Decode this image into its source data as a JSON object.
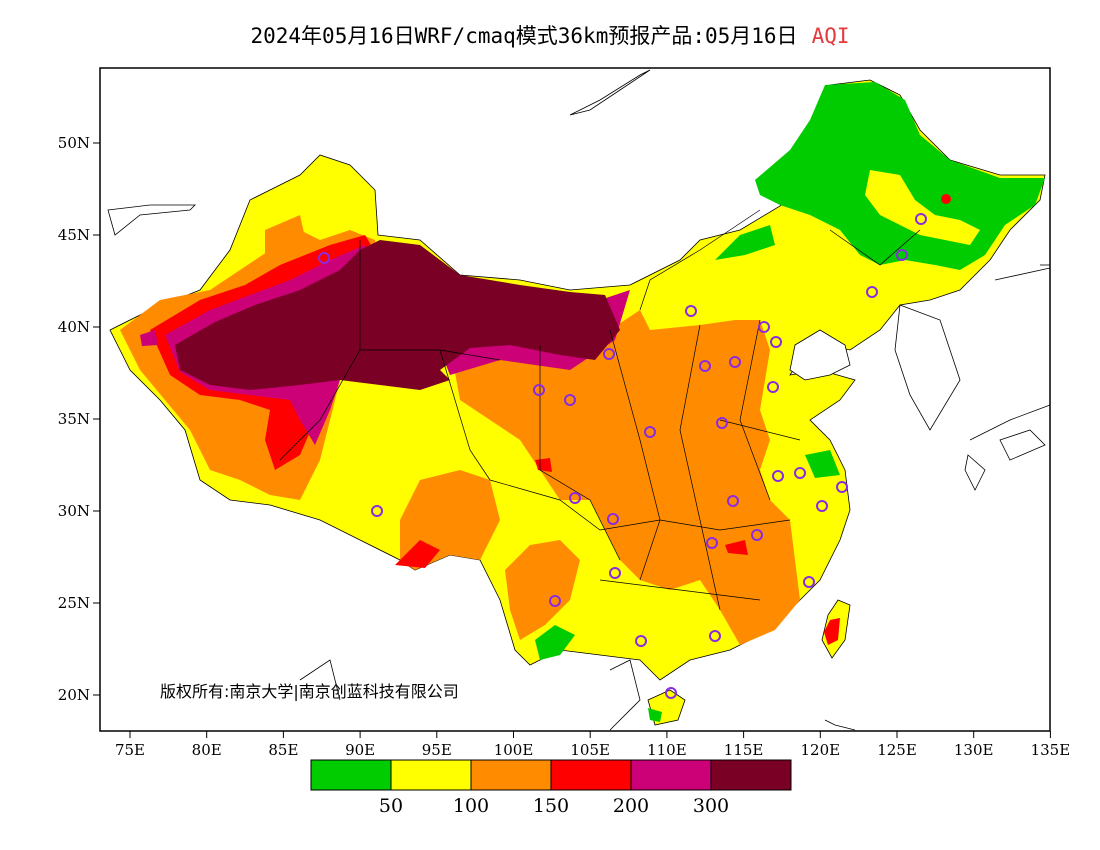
{
  "title": "2024年05月16日WRF/cmaq模式36km预报产品:05月16日",
  "product": "AQI",
  "copyright": "版权所有:南京大学|南京创蓝科技有限公司",
  "axes": {
    "lon_ticks": [
      "75E",
      "80E",
      "85E",
      "90E",
      "95E",
      "100E",
      "105E",
      "110E",
      "115E",
      "120E",
      "125E",
      "130E",
      "135E"
    ],
    "lat_ticks": [
      "50N",
      "45N",
      "40N",
      "35N",
      "30N",
      "25N",
      "20N"
    ]
  },
  "legend": {
    "colors": [
      "#00cc00",
      "#ffff00",
      "#ff8c00",
      "#ff0000",
      "#cc0077",
      "#7a0026"
    ],
    "labels": [
      "50",
      "100",
      "150",
      "200",
      "300"
    ]
  },
  "colors": {
    "good": "#00cc00",
    "moderate": "#ffff00",
    "sensitive": "#ff8c00",
    "unhealthy": "#ff0000",
    "very_unhealthy": "#cc0077",
    "hazardous": "#7a0026",
    "city_marker": "#8a2be2"
  }
}
